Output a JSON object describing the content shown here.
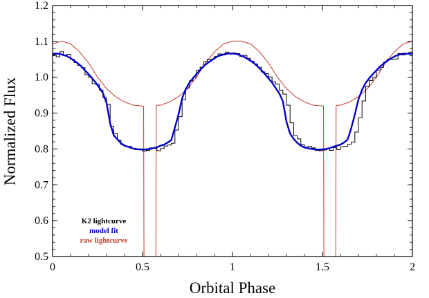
{
  "chart_data": {
    "type": "line",
    "xlabel": "Orbital Phase",
    "ylabel": "Normalized Flux",
    "xlim": [
      0,
      2
    ],
    "ylim": [
      0.5,
      1.2
    ],
    "x_ticks": [
      "0",
      "0.5",
      "1",
      "1.5",
      "2"
    ],
    "y_ticks": [
      "0.5",
      "0.6",
      "0.7",
      "0.8",
      "0.9",
      "1.0",
      "1.1",
      "1.2"
    ],
    "x_tick_values": [
      0,
      0.5,
      1,
      1.5,
      2
    ],
    "y_tick_values": [
      0.5,
      0.6,
      0.7,
      0.8,
      0.9,
      1.0,
      1.1,
      1.2
    ],
    "grid": false,
    "legend_position": "bottom-left",
    "series": [
      {
        "name": "K2 lightcurve",
        "color": "#000000",
        "style": "histogram",
        "x": [
          0.0,
          0.02,
          0.04,
          0.06,
          0.08,
          0.1,
          0.12,
          0.14,
          0.16,
          0.18,
          0.2,
          0.22,
          0.24,
          0.26,
          0.28,
          0.3,
          0.32,
          0.34,
          0.36,
          0.38,
          0.4,
          0.42,
          0.44,
          0.46,
          0.48,
          0.5,
          0.52,
          0.54,
          0.56,
          0.58,
          0.6,
          0.62,
          0.64,
          0.66,
          0.68,
          0.7,
          0.72,
          0.74,
          0.76,
          0.78,
          0.8,
          0.82,
          0.84,
          0.86,
          0.88,
          0.9,
          0.92,
          0.94,
          0.96,
          0.98,
          1.0,
          1.02,
          1.04,
          1.06,
          1.08,
          1.1,
          1.12,
          1.14,
          1.16,
          1.18,
          1.2,
          1.22,
          1.24,
          1.26,
          1.28,
          1.3,
          1.32,
          1.34,
          1.36,
          1.38,
          1.4,
          1.42,
          1.44,
          1.46,
          1.48,
          1.5,
          1.52,
          1.54,
          1.56,
          1.58,
          1.6,
          1.62,
          1.64,
          1.66,
          1.68,
          1.7,
          1.72,
          1.74,
          1.76,
          1.78,
          1.8,
          1.82,
          1.84,
          1.86,
          1.88,
          1.9,
          1.92,
          1.94,
          1.96,
          1.98
        ],
        "y": [
          1.062,
          1.057,
          1.071,
          1.062,
          1.064,
          1.05,
          1.041,
          1.033,
          1.027,
          1.007,
          1.0,
          0.982,
          0.98,
          0.964,
          0.943,
          0.924,
          0.863,
          0.843,
          0.825,
          0.812,
          0.807,
          0.807,
          0.802,
          0.798,
          0.8,
          0.794,
          0.796,
          0.803,
          0.802,
          0.795,
          0.801,
          0.808,
          0.811,
          0.816,
          0.853,
          0.89,
          0.938,
          0.97,
          0.99,
          1.0,
          1.02,
          1.028,
          1.043,
          1.05,
          1.05,
          1.058,
          1.065,
          1.062,
          1.07,
          1.066,
          1.068,
          1.066,
          1.058,
          1.061,
          1.053,
          1.045,
          1.037,
          1.028,
          1.015,
          1.01,
          1.001,
          0.987,
          0.981,
          0.964,
          0.953,
          0.922,
          0.873,
          0.837,
          0.828,
          0.812,
          0.805,
          0.807,
          0.803,
          0.796,
          0.795,
          0.797,
          0.8,
          0.796,
          0.804,
          0.798,
          0.806,
          0.807,
          0.813,
          0.819,
          0.847,
          0.887,
          0.934,
          0.974,
          0.991,
          1.0,
          1.02,
          1.028,
          1.042,
          1.05,
          1.05,
          1.051,
          1.066,
          1.062,
          1.065,
          1.07
        ]
      },
      {
        "name": "model fit",
        "color": "#0000cc",
        "style": "line",
        "x": [
          0.0,
          0.02,
          0.04,
          0.06,
          0.08,
          0.1,
          0.12,
          0.14,
          0.16,
          0.18,
          0.2,
          0.22,
          0.24,
          0.26,
          0.28,
          0.3,
          0.32,
          0.34,
          0.36,
          0.38,
          0.4,
          0.42,
          0.44,
          0.46,
          0.48,
          0.5,
          0.52,
          0.54,
          0.56,
          0.58,
          0.6,
          0.62,
          0.64,
          0.66,
          0.68,
          0.7,
          0.72,
          0.74,
          0.76,
          0.78,
          0.8,
          0.82,
          0.84,
          0.86,
          0.88,
          0.9,
          0.92,
          0.94,
          0.96,
          0.98,
          1.0,
          1.02,
          1.04,
          1.06,
          1.08,
          1.1,
          1.12,
          1.14,
          1.16,
          1.18,
          1.2,
          1.22,
          1.24,
          1.26,
          1.28,
          1.3,
          1.32,
          1.34,
          1.36,
          1.38,
          1.4,
          1.42,
          1.44,
          1.46,
          1.48,
          1.5,
          1.52,
          1.54,
          1.56,
          1.58,
          1.6,
          1.62,
          1.64,
          1.66,
          1.68,
          1.7,
          1.72,
          1.74,
          1.76,
          1.78,
          1.8,
          1.82,
          1.84,
          1.86,
          1.88,
          1.9,
          1.92,
          1.94,
          1.96,
          1.98,
          2.0
        ],
        "y": [
          1.065,
          1.066,
          1.065,
          1.062,
          1.059,
          1.053,
          1.046,
          1.039,
          1.03,
          1.019,
          1.009,
          0.997,
          0.985,
          0.971,
          0.956,
          0.928,
          0.871,
          0.838,
          0.827,
          0.816,
          0.809,
          0.806,
          0.802,
          0.8,
          0.799,
          0.798,
          0.799,
          0.8,
          0.802,
          0.805,
          0.809,
          0.812,
          0.818,
          0.825,
          0.86,
          0.896,
          0.941,
          0.967,
          0.984,
          0.997,
          1.009,
          1.02,
          1.031,
          1.039,
          1.046,
          1.053,
          1.059,
          1.062,
          1.065,
          1.066,
          1.066,
          1.065,
          1.062,
          1.058,
          1.052,
          1.046,
          1.039,
          1.03,
          1.02,
          1.009,
          0.997,
          0.985,
          0.97,
          0.955,
          0.933,
          0.876,
          0.843,
          0.828,
          0.817,
          0.809,
          0.804,
          0.802,
          0.8,
          0.799,
          0.798,
          0.799,
          0.8,
          0.802,
          0.806,
          0.809,
          0.812,
          0.818,
          0.826,
          0.858,
          0.896,
          0.938,
          0.965,
          0.984,
          0.997,
          1.009,
          1.019,
          1.03,
          1.038,
          1.046,
          1.052,
          1.058,
          1.062,
          1.065,
          1.066,
          1.065,
          1.066
        ]
      },
      {
        "name": "raw lightcurve",
        "color": "#c0392b",
        "style": "line",
        "x": [
          0.0,
          0.05,
          0.1,
          0.15,
          0.2,
          0.25,
          0.3,
          0.35,
          0.4,
          0.45,
          0.5,
          0.506,
          0.508,
          0.512,
          0.52,
          0.56,
          0.57,
          0.574,
          0.576,
          0.582,
          0.6,
          0.65,
          0.7,
          0.75,
          0.8,
          0.85,
          0.9,
          0.95,
          1.0,
          1.05,
          1.1,
          1.15,
          1.2,
          1.25,
          1.3,
          1.35,
          1.4,
          1.45,
          1.5,
          1.506,
          1.508,
          1.512,
          1.52,
          1.56,
          1.57,
          1.574,
          1.576,
          1.582,
          1.6,
          1.65,
          1.7,
          1.75,
          1.8,
          1.85,
          1.9,
          1.95,
          2.0
        ],
        "y": [
          1.093,
          1.101,
          1.093,
          1.071,
          1.04,
          1.0,
          0.968,
          0.946,
          0.931,
          0.922,
          0.92,
          0.919,
          0.5,
          0.5,
          0.5,
          0.5,
          0.5,
          0.5,
          0.921,
          0.922,
          0.922,
          0.931,
          0.946,
          0.968,
          1.0,
          1.04,
          1.071,
          1.093,
          1.101,
          1.101,
          1.093,
          1.071,
          1.04,
          1.0,
          0.968,
          0.946,
          0.931,
          0.922,
          0.92,
          0.919,
          0.5,
          0.5,
          0.5,
          0.5,
          0.5,
          0.5,
          0.921,
          0.922,
          0.922,
          0.931,
          0.946,
          0.968,
          1.0,
          1.04,
          1.071,
          1.093,
          1.101
        ]
      }
    ],
    "legend": [
      {
        "label": "K2 lightcurve",
        "color": "#000000"
      },
      {
        "label": "model fit",
        "color": "#0000cc"
      },
      {
        "label": "raw lightcurve",
        "color": "#c0392b"
      }
    ]
  }
}
